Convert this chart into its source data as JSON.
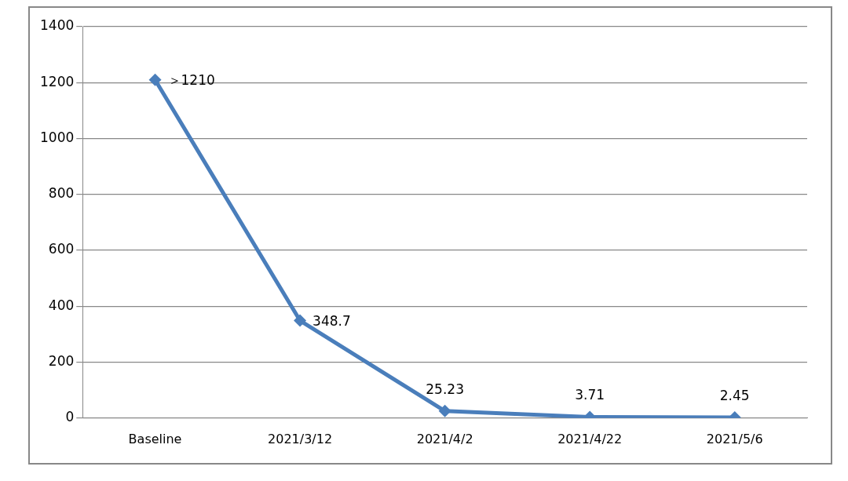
{
  "chart_data": {
    "type": "line",
    "categories": [
      "Baseline",
      "2021/3/12",
      "2021/4/2",
      "2021/4/22",
      "2021/5/6"
    ],
    "series": [
      {
        "color": "#4a7ebb",
        "values": [
          1210,
          348.7,
          25.23,
          3.71,
          2.45
        ],
        "value_labels": [
          "＞1210",
          "348.7",
          "25.23",
          "3.71",
          "2.45"
        ]
      }
    ],
    "ylim": [
      0,
      1400
    ],
    "yticks": [
      0,
      200,
      400,
      600,
      800,
      1000,
      1200,
      1400
    ],
    "grid": "y",
    "marker": "diamond",
    "line_style": "solid",
    "legend": false
  }
}
